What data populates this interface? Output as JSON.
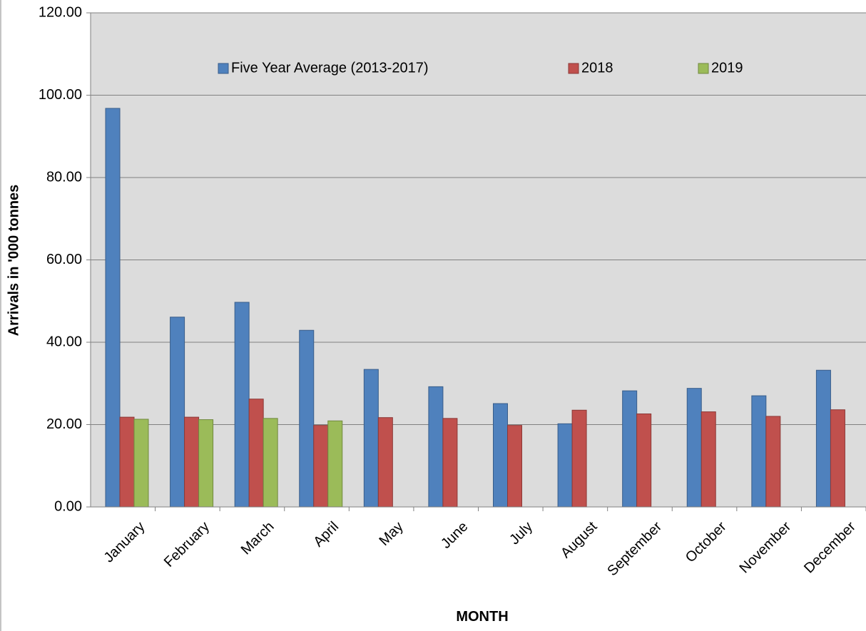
{
  "chart_data": {
    "type": "bar",
    "title": "",
    "xlabel": "MONTH",
    "ylabel": "Arrivals in '000 tonnes",
    "ylim": [
      0,
      120
    ],
    "yticks": [
      "0.00",
      "20.00",
      "40.00",
      "60.00",
      "80.00",
      "100.00",
      "120.00"
    ],
    "categories": [
      "January",
      "February",
      "March",
      "April",
      "May",
      "June",
      "July",
      "August",
      "September",
      "October",
      "November",
      "December"
    ],
    "series": [
      {
        "name": "Five Year Average  (2013-2017)",
        "color": "#4f81bd",
        "border": "#385d8a",
        "values": [
          96.8,
          46.1,
          49.7,
          42.9,
          33.4,
          29.2,
          25.1,
          20.2,
          28.2,
          28.8,
          27.0,
          33.2
        ]
      },
      {
        "name": "2018",
        "color": "#c0504d",
        "border": "#8c3836",
        "values": [
          21.8,
          21.8,
          26.2,
          19.8,
          21.7,
          21.5,
          19.8,
          23.5,
          22.6,
          23.1,
          22.0,
          23.6
        ]
      },
      {
        "name": "2019",
        "color": "#9bbb59",
        "border": "#71893f",
        "values": [
          21.3,
          21.2,
          21.5,
          20.9,
          null,
          null,
          null,
          null,
          null,
          null,
          null,
          null
        ]
      }
    ],
    "grid": true,
    "plot_background": "#dcdcdc",
    "legend_position": "top, inside plot"
  }
}
